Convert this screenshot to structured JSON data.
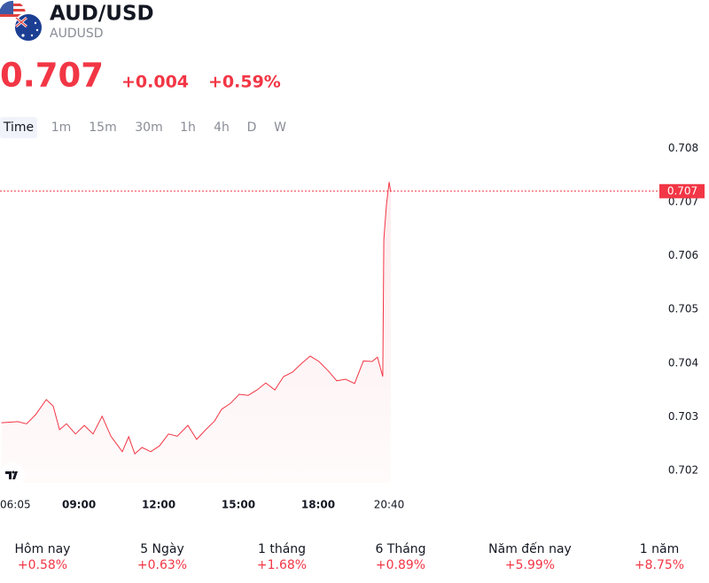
{
  "header": {
    "title": "AUD/USD",
    "symbol": "AUDUSD",
    "price": "0.707",
    "change": "+0.004",
    "change_percent": "+0.59%"
  },
  "timeframes": [
    "Time",
    "1m",
    "15m",
    "30m",
    "1h",
    "4h",
    "D",
    "W"
  ],
  "chart_data": {
    "type": "line",
    "color": "#f23645",
    "x": [
      6.08,
      6.7,
      7.03,
      7.37,
      7.77,
      8.03,
      8.27,
      8.53,
      8.87,
      9.2,
      9.53,
      9.87,
      10.2,
      10.63,
      10.87,
      11.1,
      11.37,
      11.7,
      12.03,
      12.37,
      12.7,
      13.1,
      13.43,
      13.77,
      14.1,
      14.37,
      14.7,
      15.03,
      15.37,
      15.7,
      16.03,
      16.37,
      16.7,
      17.03,
      17.37,
      17.7,
      18.03,
      18.37,
      18.7,
      19.03,
      19.37,
      19.7,
      20.03,
      20.23,
      20.43,
      20.47,
      20.57,
      20.67,
      20.73
    ],
    "values": [
      0.70289,
      0.70291,
      0.70287,
      0.70304,
      0.70332,
      0.7032,
      0.70276,
      0.70287,
      0.70268,
      0.70284,
      0.70268,
      0.70301,
      0.70264,
      0.70235,
      0.70263,
      0.70231,
      0.70243,
      0.70235,
      0.70246,
      0.70268,
      0.70264,
      0.70284,
      0.70258,
      0.70276,
      0.70292,
      0.70314,
      0.70325,
      0.70342,
      0.7034,
      0.7035,
      0.70363,
      0.7035,
      0.70375,
      0.70383,
      0.70399,
      0.70413,
      0.70403,
      0.70386,
      0.70367,
      0.7037,
      0.70362,
      0.70404,
      0.70403,
      0.70411,
      0.70375,
      0.7063,
      0.70696,
      0.70737,
      0.70719
    ],
    "xlim": [
      6.03,
      30.87
    ],
    "xticks": [
      {
        "value": 6.083,
        "label": "06:05"
      },
      {
        "value": 9,
        "label": "09:00"
      },
      {
        "value": 12,
        "label": "12:00"
      },
      {
        "value": 15,
        "label": "15:00"
      },
      {
        "value": 18,
        "label": "18:00"
      },
      {
        "value": 20.667,
        "label": "20:40"
      }
    ],
    "ylim": [
      0.70177,
      0.70812
    ],
    "yticks": [
      0.702,
      0.703,
      0.704,
      0.705,
      0.706,
      0.707,
      0.708
    ],
    "current_price": {
      "value": 0.7072,
      "label": "0.707"
    }
  },
  "performance": [
    {
      "period": "Hôm nay",
      "change": "+0.58%"
    },
    {
      "period": "5 Ngày",
      "change": "+0.63%"
    },
    {
      "period": "1 tháng",
      "change": "+1.68%"
    },
    {
      "period": "6 Tháng",
      "change": "+0.89%"
    },
    {
      "period": "Năm đến nay",
      "change": "+5.99%"
    },
    {
      "period": "1 năm",
      "change": "+8.75%"
    }
  ]
}
